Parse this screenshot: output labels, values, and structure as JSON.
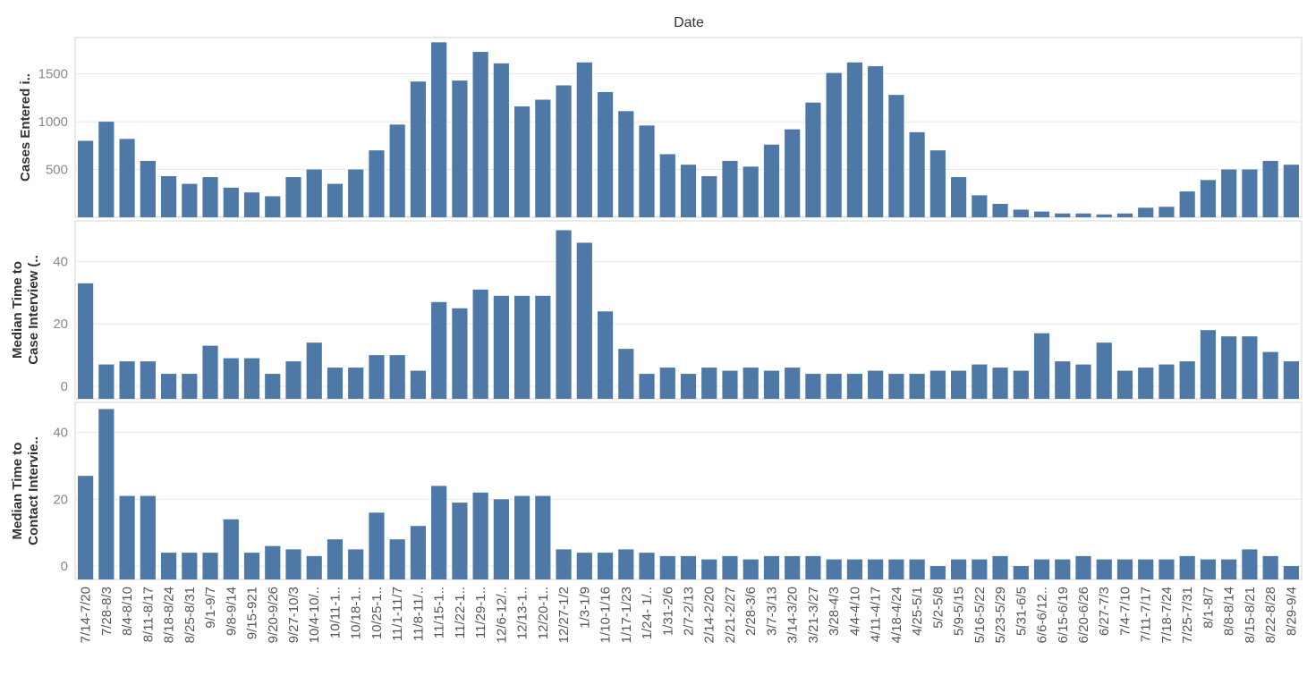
{
  "header": {
    "title": "Date"
  },
  "colors": {
    "bar": "#4e79a7",
    "grid": "#e8e8e8",
    "border": "#d4d4d4"
  },
  "chart_data": {
    "type": "bar",
    "title": "Date",
    "categories": [
      "7/14-7/20",
      "7/28-8/3",
      "8/4-8/10",
      "8/11-8/17",
      "8/18-8/24",
      "8/25-8/31",
      "9/1-9/7",
      "9/8-9/14",
      "9/15-921",
      "9/20-9/26",
      "9/27-10/3",
      "10/4-10/..",
      "10/11-1..",
      "10/18-1..",
      "10/25-1..",
      "11/1-11/7",
      "11/8-11/..",
      "11/15-1..",
      "11/22-1..",
      "11/29-1..",
      "12/6-12/..",
      "12/13-1..",
      "12/20-1..",
      "12/27-1/2",
      "1/3-1/9",
      "1/10-1/16",
      "1/17-1/23",
      "1/24- 1/..",
      "1/31-2/6",
      "2/7-2/13",
      "2/14-2/20",
      "2/21-2/27",
      "2/28-3/6",
      "3/7-3/13",
      "3/14-3/20",
      "3/21-3/27",
      "3/28-4/3",
      "4/4-4/10",
      "4/11-4/17",
      "4/18-4/24",
      "4/25-5/1",
      "5/2-5/8",
      "5/9-5/15",
      "5/16-5/22",
      "5/23-5/29",
      "5/31-6/5",
      "6/6-6/12..",
      "6/15-6/19",
      "6/20-6/26",
      "6/27-7/3",
      "7/4-7/10",
      "7/11-7/17",
      "7/18-7/24",
      "7/25-7/31",
      "8/1-8/7",
      "8/8-8/14",
      "8/15-8/21",
      "8/22-8/28",
      "8/29-9/4"
    ],
    "series": [
      {
        "name": "Cases Entered i..",
        "ylabel": "Cases Entered i..",
        "ticks": [
          500,
          1000,
          1500
        ],
        "ylim": [
          0,
          1880
        ],
        "values": [
          800,
          1000,
          820,
          590,
          430,
          350,
          420,
          310,
          260,
          220,
          420,
          500,
          350,
          500,
          700,
          970,
          1420,
          1830,
          1430,
          1730,
          1610,
          1160,
          1230,
          1380,
          1620,
          1310,
          1110,
          960,
          660,
          550,
          430,
          590,
          530,
          760,
          920,
          1200,
          1510,
          1620,
          1580,
          1280,
          890,
          700,
          420,
          230,
          140,
          80,
          60,
          40,
          40,
          30,
          40,
          100,
          110,
          270,
          390,
          500,
          500,
          590,
          550
        ]
      },
      {
        "name": "Median Time to Case Interview (..",
        "ylabel": "Median Time to Case Interview (..",
        "ticks": [
          0,
          20,
          40
        ],
        "ylim": [
          -4,
          53
        ],
        "values": [
          33,
          7,
          8,
          8,
          4,
          4,
          13,
          9,
          9,
          4,
          8,
          14,
          6,
          6,
          10,
          10,
          5,
          27,
          25,
          31,
          29,
          29,
          29,
          50,
          46,
          24,
          12,
          4,
          6,
          4,
          6,
          5,
          6,
          5,
          6,
          4,
          4,
          4,
          5,
          4,
          4,
          5,
          5,
          7,
          6,
          5,
          17,
          8,
          7,
          14,
          5,
          6,
          7,
          8,
          18,
          16,
          16,
          11,
          8
        ]
      },
      {
        "name": "Median Time to Contact Intervie..",
        "ylabel": "Median Time to Contact Intervie..",
        "ticks": [
          0,
          20,
          40
        ],
        "ylim": [
          -4,
          49
        ],
        "values": [
          27,
          47,
          21,
          21,
          4,
          4,
          4,
          14,
          4,
          6,
          5,
          3,
          8,
          5,
          16,
          8,
          12,
          24,
          19,
          22,
          20,
          21,
          21,
          5,
          4,
          4,
          5,
          4,
          3,
          3,
          2,
          3,
          2,
          3,
          3,
          3,
          2,
          2,
          2,
          2,
          2,
          0,
          2,
          2,
          3,
          0,
          2,
          2,
          3,
          2,
          2,
          2,
          2,
          3,
          2,
          2,
          5,
          3,
          0
        ]
      }
    ]
  }
}
